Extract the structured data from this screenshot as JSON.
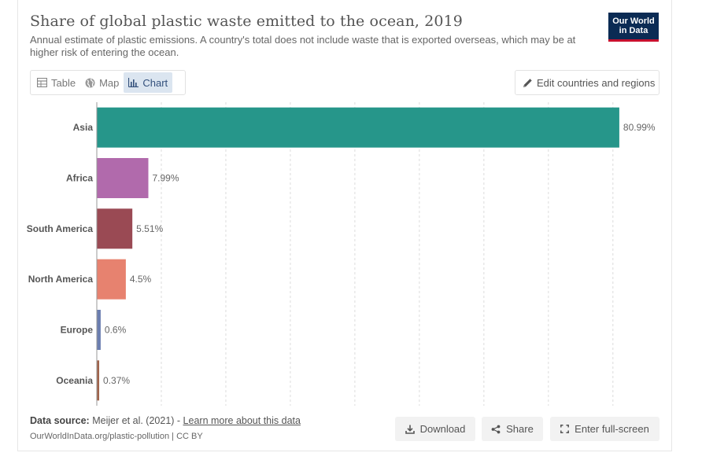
{
  "header": {
    "title": "Share of global plastic waste emitted to the ocean, 2019",
    "subtitle": "Annual estimate of plastic emissions. A country's total does not include waste that is exported overseas, which may be at higher risk of entering the ocean.",
    "logo_line1": "Our World",
    "logo_line2": "in Data"
  },
  "tabs": [
    {
      "label": "Table",
      "icon": "table-icon"
    },
    {
      "label": "Map",
      "icon": "globe-icon"
    },
    {
      "label": "Chart",
      "icon": "bar-chart-icon",
      "active": true
    }
  ],
  "edit_button": {
    "label": "Edit countries and regions",
    "icon": "pencil-icon"
  },
  "chart_data": {
    "type": "bar",
    "orientation": "horizontal",
    "title": "Share of global plastic waste emitted to the ocean, 2019",
    "categories": [
      "Asia",
      "Africa",
      "South America",
      "North America",
      "Europe",
      "Oceania"
    ],
    "values": [
      80.99,
      7.99,
      5.51,
      4.5,
      0.6,
      0.37
    ],
    "labels": [
      "80.99%",
      "7.99%",
      "5.51%",
      "4.5%",
      "0.6%",
      "0.37%"
    ],
    "colors": [
      "#26968a",
      "#b16aac",
      "#9a4a54",
      "#e7826f",
      "#6b7eb0",
      "#a0634a"
    ],
    "xlim": [
      0,
      81
    ],
    "gridlines": [
      10,
      20,
      30,
      40,
      50,
      60,
      70,
      80
    ],
    "xlabel": "",
    "ylabel": ""
  },
  "footer": {
    "source_label": "Data source:",
    "source_text": "Meijer et al. (2021) - ",
    "source_link": "Learn more about this data",
    "url_text": "OurWorldInData.org/plastic-pollution | CC BY",
    "download_label": "Download",
    "share_label": "Share",
    "fullscreen_label": "Enter full-screen"
  },
  "colors": {
    "accent": "#26968a",
    "brand": "#0b2b54",
    "brand_red": "#c8102e",
    "active_tab": "#dbe5f0"
  }
}
